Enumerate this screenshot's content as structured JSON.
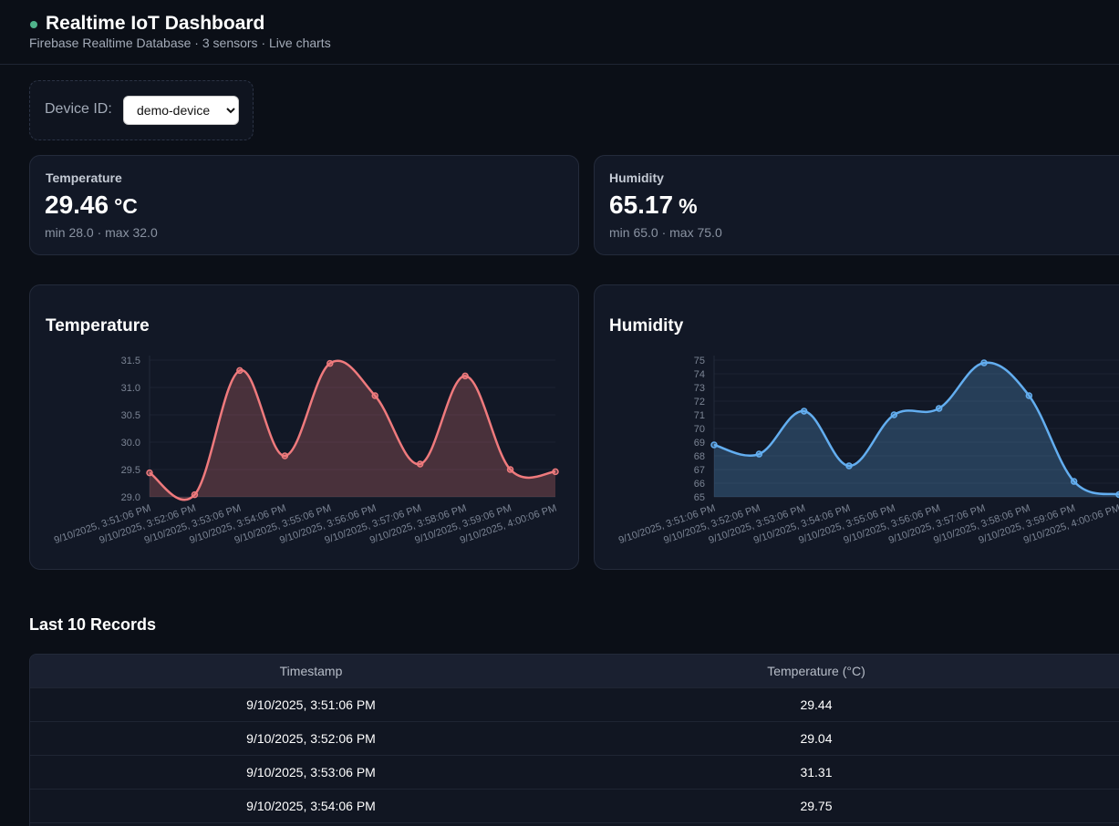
{
  "header": {
    "title": "Realtime IoT Dashboard",
    "subtitle": "Firebase Realtime Database · 3 sensors · Live charts"
  },
  "device": {
    "label": "Device ID:",
    "selected": "demo-device"
  },
  "cards": [
    {
      "label": "Temperature",
      "value": 29.46,
      "unit": "°C",
      "range": "min 28.0 · max 32.0"
    },
    {
      "label": "Humidity",
      "value": 65.17,
      "unit": "%",
      "range": "min 65.0 · max 75.0"
    }
  ],
  "chart_data": [
    {
      "type": "line",
      "title": "Temperature",
      "categories": [
        "9/10/2025, 3:51:06 PM",
        "9/10/2025, 3:52:06 PM",
        "9/10/2025, 3:53:06 PM",
        "9/10/2025, 3:54:06 PM",
        "9/10/2025, 3:55:06 PM",
        "9/10/2025, 3:56:06 PM",
        "9/10/2025, 3:57:06 PM",
        "9/10/2025, 3:58:06 PM",
        "9/10/2025, 3:59:06 PM",
        "9/10/2025, 4:00:06 PM"
      ],
      "values": [
        29.44,
        29.04,
        31.31,
        29.75,
        31.44,
        30.85,
        29.6,
        31.21,
        29.5,
        29.46
      ],
      "color": "#ef7a7d",
      "fill": true,
      "ylim": [
        29,
        31.5
      ],
      "yticks": [
        {
          "value": 29,
          "label": "29.0"
        },
        29.5,
        {
          "value": 30,
          "label": "30.0"
        },
        30.5,
        {
          "value": 31,
          "label": "31.0"
        },
        31.5
      ],
      "grid": true
    },
    {
      "type": "line",
      "title": "Humidity",
      "categories": [
        "9/10/2025, 3:51:06 PM",
        "9/10/2025, 3:52:06 PM",
        "9/10/2025, 3:53:06 PM",
        "9/10/2025, 3:54:06 PM",
        "9/10/2025, 3:55:06 PM",
        "9/10/2025, 3:56:06 PM",
        "9/10/2025, 3:57:06 PM",
        "9/10/2025, 3:58:06 PM",
        "9/10/2025, 3:59:06 PM",
        "9/10/2025, 4:00:06 PM"
      ],
      "values": [
        68.8,
        68.13,
        71.27,
        67.27,
        71.0,
        71.47,
        74.8,
        72.4,
        66.13,
        65.17
      ],
      "color": "#63aef0",
      "fill": true,
      "ylim": [
        65,
        75
      ],
      "yticks": [
        65,
        66,
        67,
        68,
        69,
        70,
        71,
        72,
        73,
        74,
        75
      ],
      "grid": true
    }
  ],
  "table": {
    "title": "Last 10 Records",
    "columns": [
      "Timestamp",
      "Temperature (°C)"
    ],
    "rows": [
      [
        "9/10/2025, 3:51:06 PM",
        29.44
      ],
      [
        "9/10/2025, 3:52:06 PM",
        29.04
      ],
      [
        "9/10/2025, 3:53:06 PM",
        31.31
      ],
      [
        "9/10/2025, 3:54:06 PM",
        29.75
      ]
    ]
  }
}
